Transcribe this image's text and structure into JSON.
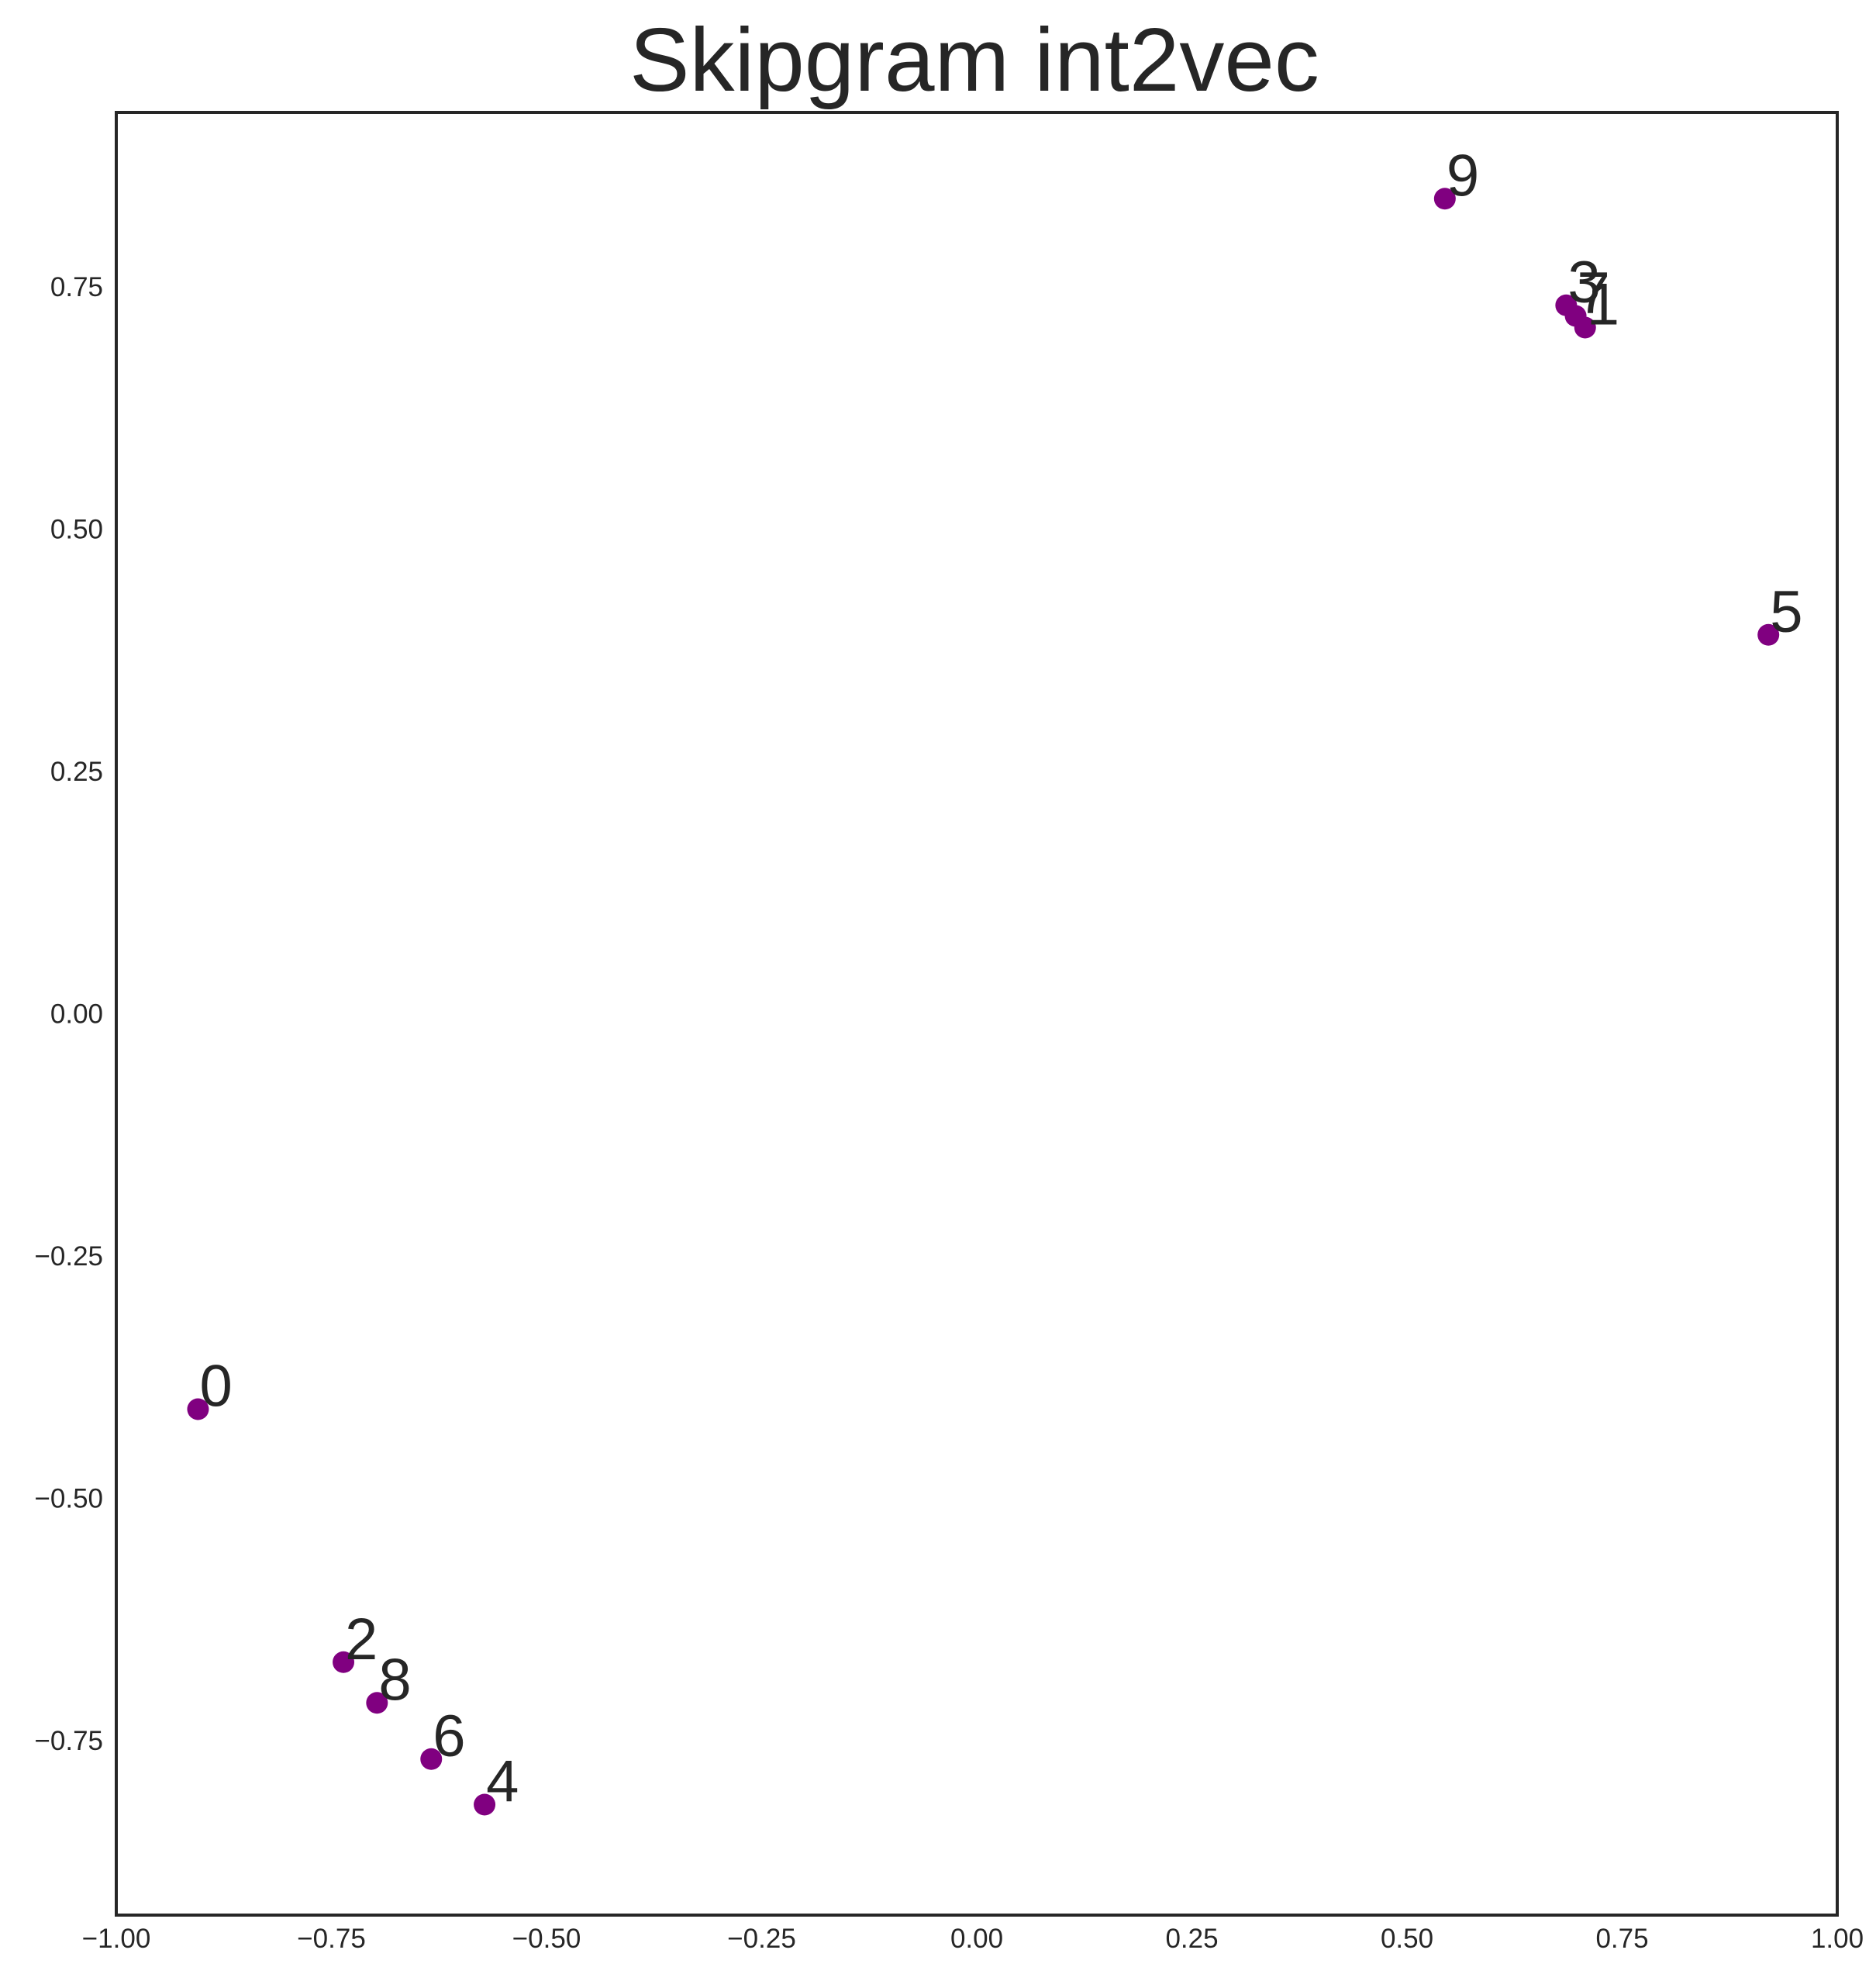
{
  "chart_data": {
    "type": "scatter",
    "title": "Skipgram int2vec",
    "xlabel": "",
    "ylabel": "",
    "xlim": [
      -1.0,
      1.0
    ],
    "ylim": [
      -0.93,
      0.93
    ],
    "x_ticks": [
      -1.0,
      -0.75,
      -0.5,
      -0.25,
      0.0,
      0.25,
      0.5,
      0.75,
      1.0
    ],
    "x_tick_labels": [
      "−1.00",
      "−0.75",
      "−0.50",
      "−0.25",
      "0.00",
      "0.25",
      "0.50",
      "0.75",
      "1.00"
    ],
    "y_ticks": [
      -0.75,
      -0.5,
      -0.25,
      0.0,
      0.25,
      0.5,
      0.75
    ],
    "y_tick_labels": [
      "−0.75",
      "−0.50",
      "−0.25",
      "0.00",
      "0.25",
      "0.50",
      "0.75"
    ],
    "grid": false,
    "marker_color": "#800080",
    "points": [
      {
        "label": "0",
        "x": -0.905,
        "y": -0.408
      },
      {
        "label": "1",
        "x": 0.707,
        "y": 0.708
      },
      {
        "label": "2",
        "x": -0.736,
        "y": -0.669
      },
      {
        "label": "3",
        "x": 0.685,
        "y": 0.731
      },
      {
        "label": "4",
        "x": -0.572,
        "y": -0.816
      },
      {
        "label": "5",
        "x": 0.92,
        "y": 0.391
      },
      {
        "label": "6",
        "x": -0.634,
        "y": -0.769
      },
      {
        "label": "7",
        "x": 0.696,
        "y": 0.72
      },
      {
        "label": "8",
        "x": -0.697,
        "y": -0.711
      },
      {
        "label": "9",
        "x": 0.544,
        "y": 0.841
      }
    ]
  }
}
